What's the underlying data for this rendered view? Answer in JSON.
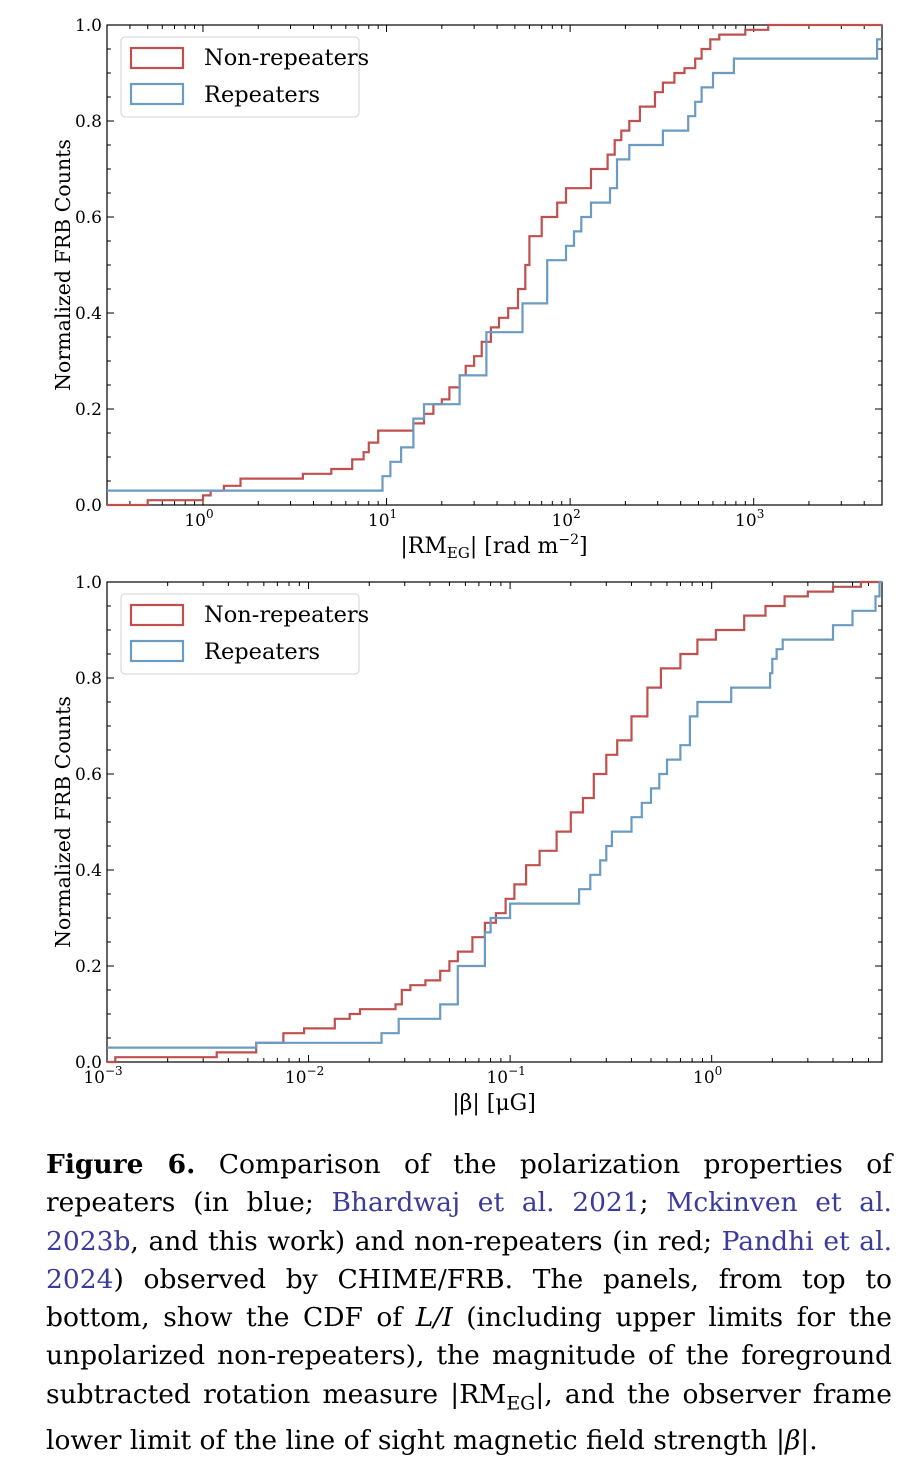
{
  "colors": {
    "non_repeaters": "#c0504d",
    "repeaters": "#6a9bc3"
  },
  "chart_data": [
    {
      "type": "line",
      "step": true,
      "xscale": "log",
      "xlim": [
        0.3,
        5000
      ],
      "ylim": [
        0,
        1.0
      ],
      "xlabel": "|RM",
      "xlabel_sub": "EG",
      "xlabel_tail": "| [rad m",
      "xlabel_sup": "−2",
      "xlabel_end": "]",
      "ylabel": "Normalized FRB Counts",
      "yticks": [
        "0.0",
        "0.2",
        "0.4",
        "0.6",
        "0.8",
        "1.0"
      ],
      "xtick_bases": [
        "10",
        "10",
        "10",
        "10"
      ],
      "xtick_exps": [
        "0",
        "1",
        "2",
        "3"
      ],
      "legend_position": "top-left",
      "series": [
        {
          "name": "Non-repeaters",
          "color": "#c0504d",
          "x": [
            0.3,
            0.5,
            1.0,
            1.1,
            1.3,
            1.6,
            3.5,
            5.0,
            6.5,
            7.5,
            8.0,
            9.0,
            14,
            16,
            18,
            20,
            22,
            25,
            27,
            30,
            33,
            37,
            41,
            46,
            52,
            57,
            60,
            70,
            85,
            95,
            130,
            160,
            175,
            190,
            210,
            240,
            290,
            320,
            370,
            420,
            480,
            520,
            580,
            650,
            900,
            1200
          ],
          "y": [
            0.0,
            0.01,
            0.02,
            0.03,
            0.04,
            0.055,
            0.065,
            0.075,
            0.095,
            0.11,
            0.13,
            0.155,
            0.17,
            0.19,
            0.21,
            0.22,
            0.245,
            0.27,
            0.29,
            0.31,
            0.34,
            0.37,
            0.39,
            0.41,
            0.45,
            0.5,
            0.56,
            0.6,
            0.63,
            0.66,
            0.7,
            0.73,
            0.76,
            0.78,
            0.8,
            0.83,
            0.86,
            0.88,
            0.9,
            0.91,
            0.93,
            0.95,
            0.97,
            0.98,
            0.99,
            1.0
          ],
          "end": 5000
        },
        {
          "name": "Repeaters",
          "color": "#6a9bc3",
          "x": [
            0.3,
            1.2,
            9.5,
            10.5,
            12,
            14,
            16,
            25,
            35,
            55,
            75,
            95,
            105,
            115,
            130,
            165,
            180,
            210,
            320,
            440,
            480,
            520,
            600,
            780,
            4700
          ],
          "y": [
            0.03,
            0.03,
            0.06,
            0.09,
            0.12,
            0.18,
            0.21,
            0.27,
            0.36,
            0.42,
            0.51,
            0.54,
            0.57,
            0.6,
            0.63,
            0.66,
            0.72,
            0.75,
            0.78,
            0.81,
            0.84,
            0.87,
            0.9,
            0.93,
            0.97
          ],
          "end": 5000
        }
      ]
    },
    {
      "type": "line",
      "step": true,
      "xscale": "log",
      "xlim": [
        0.001,
        7.0
      ],
      "ylim": [
        0,
        1.0
      ],
      "xlabel": "|β| [μG]",
      "ylabel": "Normalized FRB Counts",
      "yticks": [
        "0.0",
        "0.2",
        "0.4",
        "0.6",
        "0.8",
        "1.0"
      ],
      "xtick_bases": [
        "10",
        "10",
        "10",
        "10"
      ],
      "xtick_exps": [
        "−3",
        "−2",
        "−1",
        "0"
      ],
      "legend_position": "top-left",
      "series": [
        {
          "name": "Non-repeaters",
          "color": "#c0504d",
          "x": [
            0.001,
            0.0011,
            0.0035,
            0.0055,
            0.0075,
            0.0095,
            0.0135,
            0.016,
            0.018,
            0.027,
            0.029,
            0.032,
            0.038,
            0.045,
            0.05,
            0.055,
            0.065,
            0.075,
            0.085,
            0.095,
            0.105,
            0.12,
            0.14,
            0.17,
            0.2,
            0.23,
            0.26,
            0.3,
            0.34,
            0.4,
            0.48,
            0.56,
            0.7,
            0.85,
            1.05,
            1.45,
            1.85,
            2.3,
            3.0,
            4.0,
            5.5
          ],
          "y": [
            0.0,
            0.01,
            0.02,
            0.04,
            0.06,
            0.07,
            0.09,
            0.1,
            0.11,
            0.12,
            0.15,
            0.16,
            0.17,
            0.19,
            0.21,
            0.23,
            0.26,
            0.29,
            0.31,
            0.34,
            0.37,
            0.41,
            0.44,
            0.48,
            0.52,
            0.55,
            0.6,
            0.64,
            0.67,
            0.72,
            0.78,
            0.82,
            0.85,
            0.88,
            0.9,
            0.93,
            0.95,
            0.97,
            0.98,
            0.99,
            1.0
          ],
          "end": 7.0
        },
        {
          "name": "Repeaters",
          "color": "#6a9bc3",
          "x": [
            0.001,
            0.0055,
            0.023,
            0.028,
            0.045,
            0.055,
            0.075,
            0.08,
            0.1,
            0.22,
            0.25,
            0.28,
            0.3,
            0.32,
            0.4,
            0.45,
            0.5,
            0.55,
            0.6,
            0.7,
            0.78,
            0.85,
            1.25,
            1.95,
            2.0,
            2.1,
            2.25,
            4.0,
            5.0,
            6.5,
            6.8
          ],
          "y": [
            0.03,
            0.04,
            0.06,
            0.09,
            0.12,
            0.2,
            0.27,
            0.3,
            0.33,
            0.36,
            0.39,
            0.42,
            0.45,
            0.48,
            0.51,
            0.54,
            0.57,
            0.6,
            0.63,
            0.66,
            0.72,
            0.75,
            0.78,
            0.81,
            0.84,
            0.86,
            0.88,
            0.91,
            0.94,
            0.97,
            1.0
          ],
          "end": 7.0
        }
      ]
    }
  ],
  "caption": {
    "label": "Figure 6.",
    "t1": " Comparison of the polarization properties of repeaters (in blue; ",
    "cite1": "Bhardwaj et al. 2021",
    "t2": "; ",
    "cite2": "Mckinven et al. 2023b",
    "t3": ", and this work) and non-repeaters (in red; ",
    "cite3": "Pandhi et al. 2024",
    "t4": ") observed by CHIME/FRB. The panels, from top to bottom, show the CDF of ",
    "m1": "L/I",
    "t5": " (including upper limits for the unpolarized non-repeaters), the magnitude of the foreground subtracted rotation measure |RM",
    "sub1": "EG",
    "t6": "|, and the observer frame lower limit of the line of sight magnetic field strength |",
    "m2": "β",
    "t7": "|."
  }
}
